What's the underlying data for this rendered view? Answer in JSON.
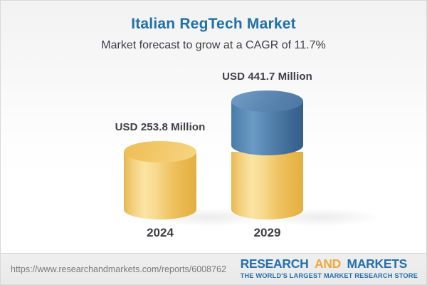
{
  "header": {
    "title": "Italian RegTech Market",
    "subtitle": "Market forecast to grow at a CAGR of 11.7%"
  },
  "chart_data": {
    "type": "bar",
    "subtype": "3d-cylinder",
    "categories": [
      "2024",
      "2029"
    ],
    "values": [
      253.8,
      441.7
    ],
    "unit": "USD Million",
    "value_labels": [
      "USD 253.8 Million",
      "USD 441.7 Million"
    ],
    "cagr_percent": 11.7,
    "legend": "2029 bar shows the 2024 base in gold with incremental growth shown in blue",
    "colors": {
      "base_gold": "#F2C868",
      "growth_blue": "#4A7CA9",
      "label_text": "#3F3F44",
      "title_blue": "#2171A9"
    }
  },
  "footer": {
    "url": "https://www.researchandmarkets.com/reports/6008762",
    "logo": {
      "word1": "RESEARCH",
      "word2": "AND",
      "word3": "MARKETS",
      "tagline": "THE WORLD'S LARGEST MARKET RESEARCH STORE",
      "blue": "#2470AE",
      "gold": "#F0A73C"
    }
  }
}
